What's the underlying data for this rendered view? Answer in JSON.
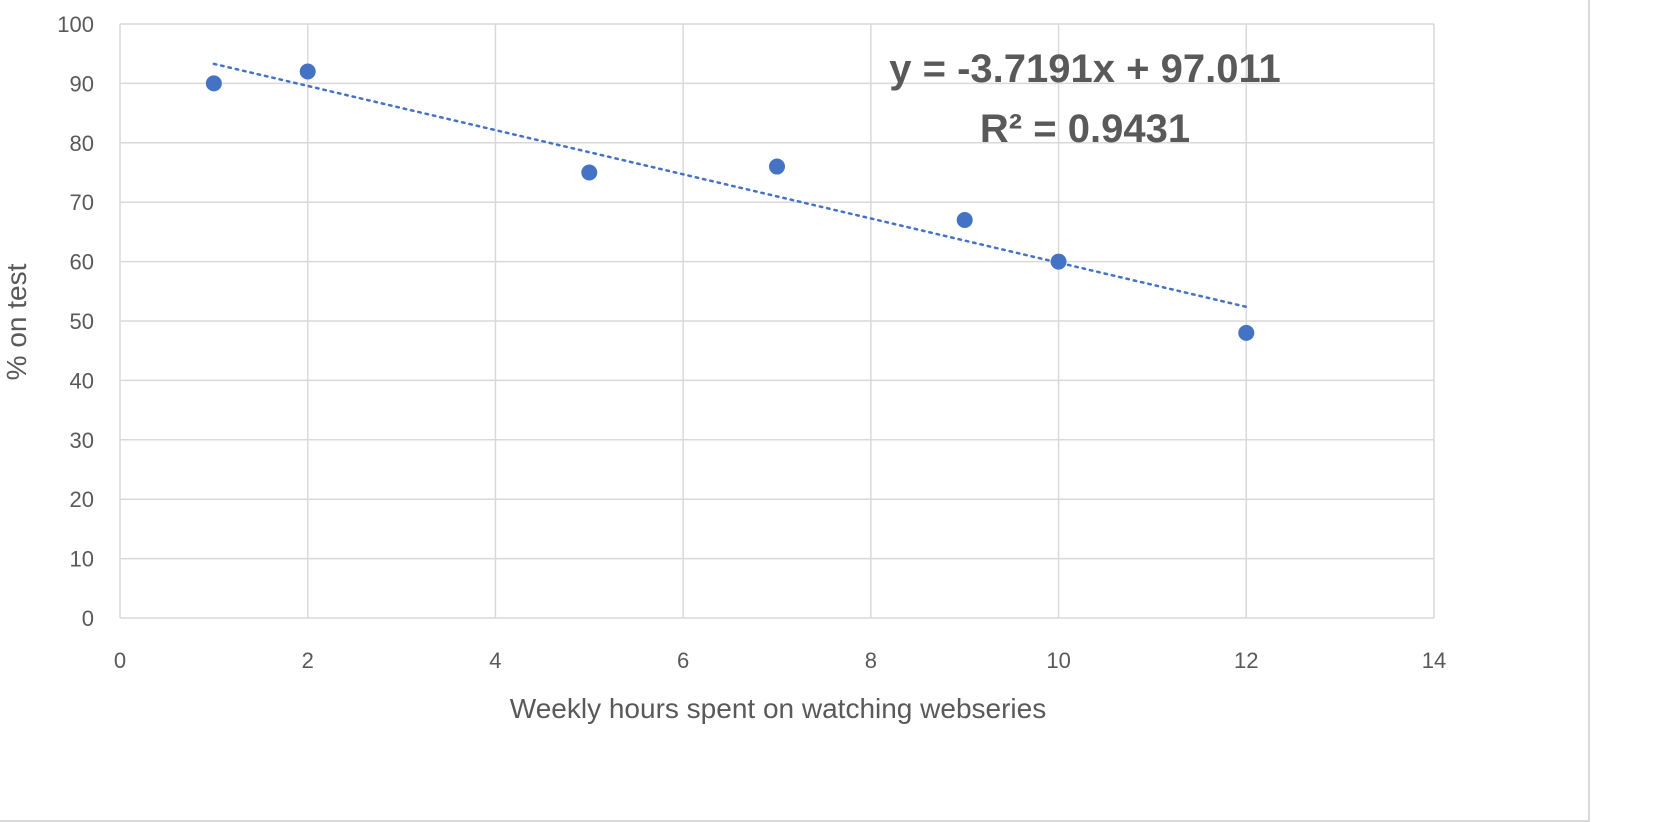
{
  "chart_data": {
    "type": "scatter",
    "title": "",
    "xlabel": "Weekly hours spent on watching webseries",
    "ylabel": "% on test",
    "xlim": [
      0,
      14
    ],
    "ylim": [
      0,
      100
    ],
    "x_ticks": [
      "0",
      "2",
      "4",
      "6",
      "8",
      "10",
      "12",
      "14"
    ],
    "y_ticks": [
      "0",
      "10",
      "20",
      "30",
      "40",
      "50",
      "60",
      "70",
      "80",
      "90",
      "100"
    ],
    "grid": true,
    "legend": "none",
    "series": [
      {
        "color": "#4472c4",
        "points": [
          {
            "x": 1,
            "y": 90
          },
          {
            "x": 2,
            "y": 92
          },
          {
            "x": 5,
            "y": 75
          },
          {
            "x": 7,
            "y": 76
          },
          {
            "x": 9,
            "y": 67
          },
          {
            "x": 10,
            "y": 60
          },
          {
            "x": 12,
            "y": 48
          }
        ]
      }
    ],
    "trendline": {
      "type": "linear",
      "style": "dotted",
      "color": "#4472c4",
      "slope": -3.7191,
      "intercept": 97.011,
      "x_range": [
        1,
        12
      ],
      "equation_label": "y = -3.7191x + 97.011",
      "r2_label": "R² = 0.9431"
    }
  },
  "colors": {
    "gridline": "#d9d9d9",
    "text": "#595959",
    "marker": "#4472c4"
  }
}
